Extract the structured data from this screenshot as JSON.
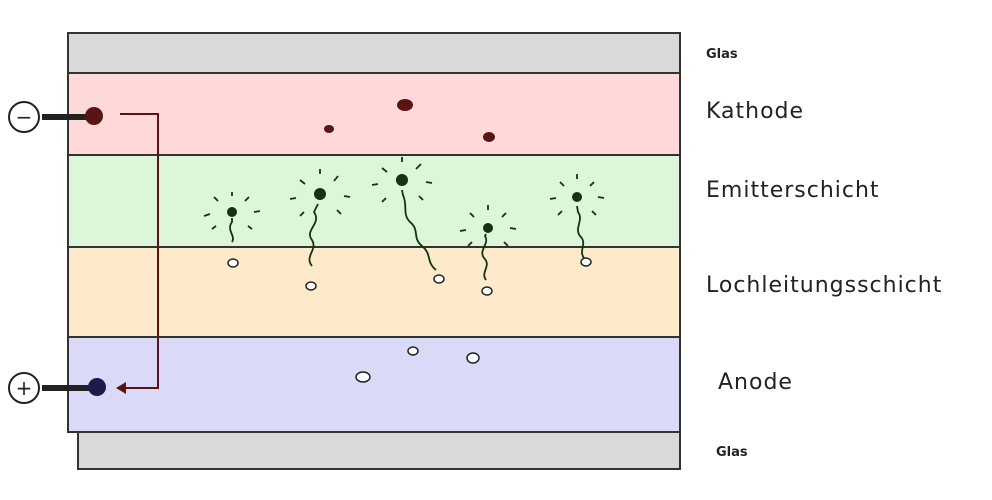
{
  "diagram": {
    "layers": [
      {
        "id": "glass-top",
        "label": "Glas",
        "color": "#d9d9d9"
      },
      {
        "id": "cathode",
        "label": "Kathode",
        "color": "#ffd9d9"
      },
      {
        "id": "emitter",
        "label": "Emitterschicht",
        "color": "#ddf5d8"
      },
      {
        "id": "hole-transport",
        "label": "Lochleitungsschicht",
        "color": "#fdeacb"
      },
      {
        "id": "anode",
        "label": "Anode",
        "color": "#dadaf8"
      },
      {
        "id": "glass-bottom",
        "label": "Glas",
        "color": "#d9d9d9"
      }
    ],
    "terminals": {
      "negative": "−",
      "positive": "+"
    },
    "colors": {
      "electron": "#5a1414",
      "emitter_particle": "#143214",
      "terminal_dot_negative": "#5a1414",
      "terminal_dot_positive": "#1c1c4a",
      "wire": "#5a1414",
      "outline": "#333333"
    }
  }
}
